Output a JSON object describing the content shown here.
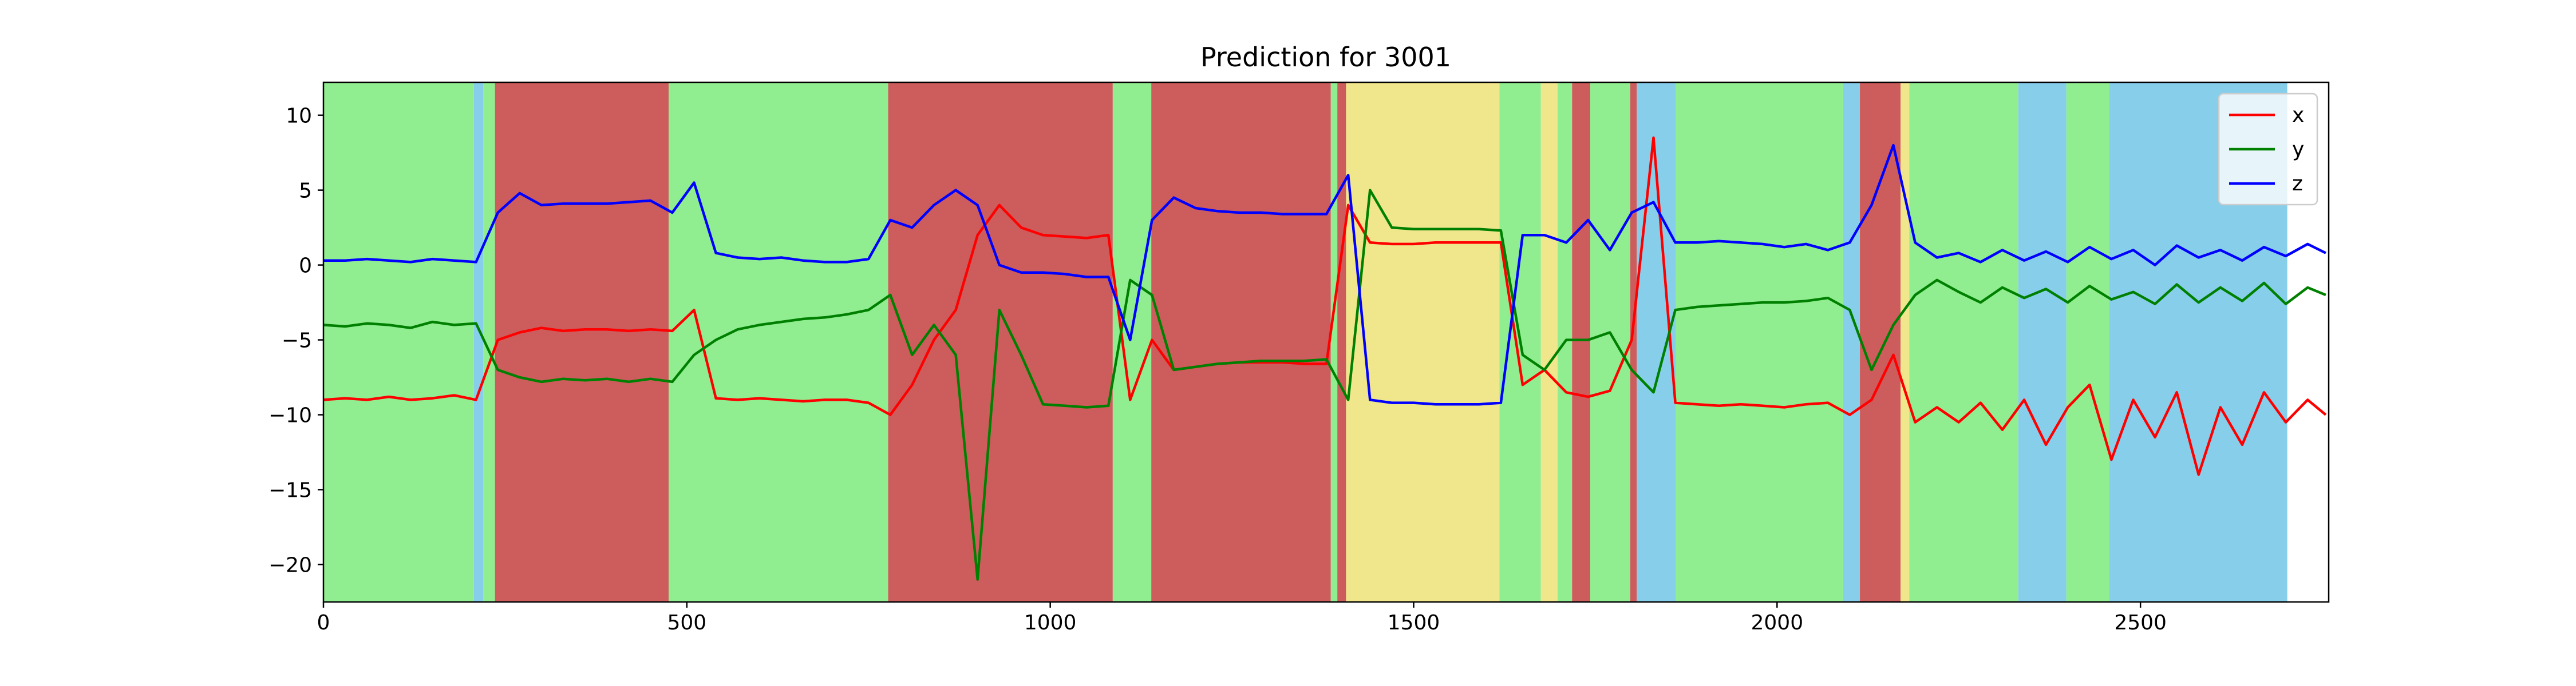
{
  "chart_data": {
    "type": "line",
    "title": "Prediction for 3001",
    "x": [
      0,
      30,
      60,
      90,
      120,
      150,
      180,
      210,
      240,
      270,
      300,
      330,
      360,
      390,
      420,
      450,
      480,
      510,
      540,
      570,
      600,
      630,
      660,
      690,
      720,
      750,
      780,
      810,
      840,
      870,
      900,
      930,
      960,
      990,
      1020,
      1050,
      1080,
      1110,
      1140,
      1170,
      1200,
      1230,
      1260,
      1290,
      1320,
      1350,
      1380,
      1410,
      1440,
      1470,
      1500,
      1530,
      1560,
      1590,
      1620,
      1650,
      1680,
      1710,
      1740,
      1770,
      1800,
      1830,
      1860,
      1890,
      1920,
      1950,
      1980,
      2010,
      2040,
      2070,
      2100,
      2130,
      2160,
      2190,
      2220,
      2250,
      2280,
      2310,
      2340,
      2370,
      2400,
      2430,
      2460,
      2490,
      2520,
      2550,
      2580,
      2610,
      2640,
      2670,
      2700,
      2730,
      2755
    ],
    "series": [
      {
        "name": "x",
        "color": "#ff0000",
        "values": [
          -9,
          -8.9,
          -9,
          -8.8,
          -9,
          -8.9,
          -8.7,
          -9,
          -5,
          -4.5,
          -4.2,
          -4.4,
          -4.3,
          -4.3,
          -4.4,
          -4.3,
          -4.4,
          -3,
          -8.9,
          -9,
          -8.9,
          -9,
          -9.1,
          -9,
          -9,
          -9.2,
          -10,
          -8,
          -5,
          -3,
          2,
          4,
          2.5,
          2,
          1.9,
          1.8,
          2,
          -9,
          -5,
          -7,
          -6.8,
          -6.6,
          -6.5,
          -6.5,
          -6.5,
          -6.6,
          -6.6,
          4,
          1.5,
          1.4,
          1.4,
          1.5,
          1.5,
          1.5,
          1.5,
          -8,
          -7,
          -8.5,
          -8.8,
          -8.4,
          -5,
          8.5,
          -9.2,
          -9.3,
          -9.4,
          -9.3,
          -9.4,
          -9.5,
          -9.3,
          -9.2,
          -10,
          -9,
          -6,
          -10.5,
          -9.5,
          -10.5,
          -9.2,
          -11,
          -9,
          -12,
          -9.5,
          -8,
          -13,
          -9,
          -11.5,
          -8.5,
          -14,
          -9.5,
          -12,
          -8.5,
          -10.5,
          -9,
          -10
        ]
      },
      {
        "name": "y",
        "color": "#008000",
        "values": [
          -4,
          -4.1,
          -3.9,
          -4,
          -4.2,
          -3.8,
          -4,
          -3.9,
          -7,
          -7.5,
          -7.8,
          -7.6,
          -7.7,
          -7.6,
          -7.8,
          -7.6,
          -7.8,
          -6,
          -5,
          -4.3,
          -4,
          -3.8,
          -3.6,
          -3.5,
          -3.3,
          -3,
          -2,
          -6,
          -4,
          -6,
          -21,
          -3,
          -6,
          -9.3,
          -9.4,
          -9.5,
          -9.4,
          -1,
          -2,
          -7,
          -6.8,
          -6.6,
          -6.5,
          -6.4,
          -6.4,
          -6.4,
          -6.3,
          -9,
          5,
          2.5,
          2.4,
          2.4,
          2.4,
          2.4,
          2.3,
          -6,
          -7,
          -5,
          -5,
          -4.5,
          -7,
          -8.5,
          -3,
          -2.8,
          -2.7,
          -2.6,
          -2.5,
          -2.5,
          -2.4,
          -2.2,
          -3,
          -7,
          -4,
          -2,
          -1,
          -1.8,
          -2.5,
          -1.5,
          -2.2,
          -1.6,
          -2.5,
          -1.4,
          -2.3,
          -1.8,
          -2.6,
          -1.3,
          -2.5,
          -1.5,
          -2.4,
          -1.2,
          -2.6,
          -1.5,
          -2
        ]
      },
      {
        "name": "z",
        "color": "#0000ff",
        "values": [
          0.3,
          0.3,
          0.4,
          0.3,
          0.2,
          0.4,
          0.3,
          0.2,
          3.5,
          4.8,
          4,
          4.1,
          4.1,
          4.1,
          4.2,
          4.3,
          3.5,
          5.5,
          0.8,
          0.5,
          0.4,
          0.5,
          0.3,
          0.2,
          0.2,
          0.4,
          3,
          2.5,
          4,
          5,
          4,
          0,
          -0.5,
          -0.5,
          -0.6,
          -0.8,
          -0.8,
          -5,
          3,
          4.5,
          3.8,
          3.6,
          3.5,
          3.5,
          3.4,
          3.4,
          3.4,
          6,
          -9,
          -9.2,
          -9.2,
          -9.3,
          -9.3,
          -9.3,
          -9.2,
          2,
          2,
          1.5,
          3,
          1,
          3.5,
          4.2,
          1.5,
          1.5,
          1.6,
          1.5,
          1.4,
          1.2,
          1.4,
          1,
          1.5,
          4,
          8,
          1.5,
          0.5,
          0.8,
          0.2,
          1,
          0.3,
          0.9,
          0.2,
          1.2,
          0.4,
          1,
          0,
          1.3,
          0.5,
          1,
          0.3,
          1.2,
          0.6,
          1.4,
          0.8
        ]
      }
    ],
    "spans": [
      {
        "start": 0,
        "end": 207,
        "color": "#90ee90"
      },
      {
        "start": 207,
        "end": 220,
        "color": "#87ceeb"
      },
      {
        "start": 220,
        "end": 236,
        "color": "#90ee90"
      },
      {
        "start": 236,
        "end": 475,
        "color": "#cd5c5c"
      },
      {
        "start": 475,
        "end": 777,
        "color": "#90ee90"
      },
      {
        "start": 777,
        "end": 1086,
        "color": "#cd5c5c"
      },
      {
        "start": 1086,
        "end": 1139,
        "color": "#90ee90"
      },
      {
        "start": 1139,
        "end": 1386,
        "color": "#cd5c5c"
      },
      {
        "start": 1386,
        "end": 1395,
        "color": "#90ee90"
      },
      {
        "start": 1395,
        "end": 1407,
        "color": "#cd5c5c"
      },
      {
        "start": 1407,
        "end": 1618,
        "color": "#f0e68c"
      },
      {
        "start": 1618,
        "end": 1675,
        "color": "#90ee90"
      },
      {
        "start": 1675,
        "end": 1698,
        "color": "#f0e68c"
      },
      {
        "start": 1698,
        "end": 1718,
        "color": "#90ee90"
      },
      {
        "start": 1718,
        "end": 1743,
        "color": "#cd5c5c"
      },
      {
        "start": 1743,
        "end": 1798,
        "color": "#90ee90"
      },
      {
        "start": 1798,
        "end": 1807,
        "color": "#cd5c5c"
      },
      {
        "start": 1807,
        "end": 1861,
        "color": "#87ceeb"
      },
      {
        "start": 1861,
        "end": 2091,
        "color": "#90ee90"
      },
      {
        "start": 2091,
        "end": 2114,
        "color": "#87ceeb"
      },
      {
        "start": 2114,
        "end": 2170,
        "color": "#cd5c5c"
      },
      {
        "start": 2170,
        "end": 2182,
        "color": "#f0e68c"
      },
      {
        "start": 2182,
        "end": 2332,
        "color": "#90ee90"
      },
      {
        "start": 2332,
        "end": 2398,
        "color": "#87ceeb"
      },
      {
        "start": 2398,
        "end": 2457,
        "color": "#90ee90"
      },
      {
        "start": 2457,
        "end": 2702,
        "color": "#87ceeb"
      }
    ],
    "xlim": [
      0,
      2759
    ],
    "ylim": [
      -22.5,
      12.2
    ],
    "xticks": [
      0,
      500,
      1000,
      1500,
      2000,
      2500
    ],
    "yticks": [
      {
        "value": -20,
        "label": "−20"
      },
      {
        "value": -15,
        "label": "−15"
      },
      {
        "value": -10,
        "label": "−10"
      },
      {
        "value": -5,
        "label": "−5"
      },
      0,
      5,
      10
    ],
    "legend": "upper right"
  }
}
